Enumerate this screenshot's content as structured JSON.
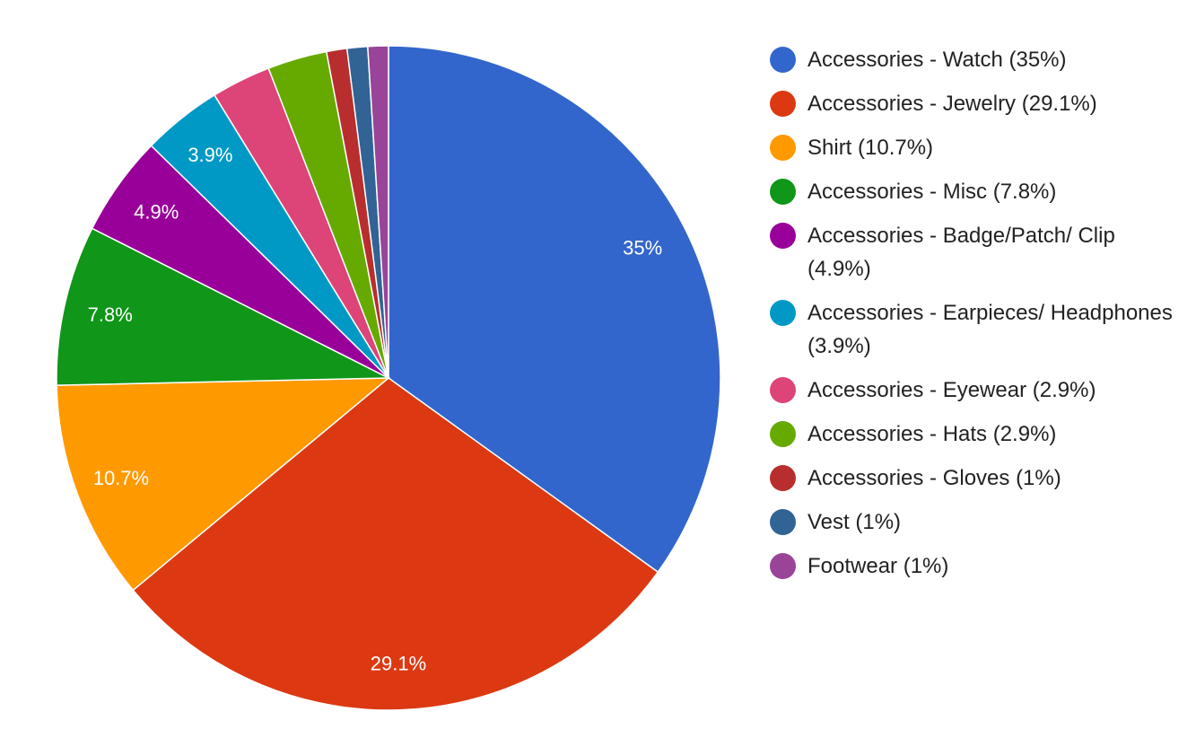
{
  "chart_data": {
    "type": "pie",
    "title": "",
    "legend_position": "right",
    "slices": [
      {
        "name": "Accessories - Watch (35%)",
        "value": 35.0,
        "label": "35%",
        "color": "#3366cc"
      },
      {
        "name": "Accessories - Jewelry (29.1%)",
        "value": 29.1,
        "label": "29.1%",
        "color": "#dc3912"
      },
      {
        "name": "Shirt (10.7%)",
        "value": 10.7,
        "label": "10.7%",
        "color": "#ff9900"
      },
      {
        "name": "Accessories - Misc (7.8%)",
        "value": 7.8,
        "label": "7.8%",
        "color": "#109618"
      },
      {
        "name": "Accessories - Badge/Patch/ Clip (4.9%)",
        "value": 4.9,
        "label": "4.9%",
        "color": "#990099"
      },
      {
        "name": "Accessories - Earpieces/ Headphones (3.9%)",
        "value": 3.9,
        "label": "3.9%",
        "color": "#0099c6"
      },
      {
        "name": "Accessories - Eyewear (2.9%)",
        "value": 2.9,
        "label": "",
        "color": "#dd4477"
      },
      {
        "name": "Accessories - Hats (2.9%)",
        "value": 2.9,
        "label": "",
        "color": "#66aa00"
      },
      {
        "name": "Accessories - Gloves (1%)",
        "value": 1.0,
        "label": "",
        "color": "#b82e2e"
      },
      {
        "name": "Vest (1%)",
        "value": 1.0,
        "label": "",
        "color": "#316395"
      },
      {
        "name": "Footwear (1%)",
        "value": 1.0,
        "label": "",
        "color": "#994499"
      }
    ]
  }
}
